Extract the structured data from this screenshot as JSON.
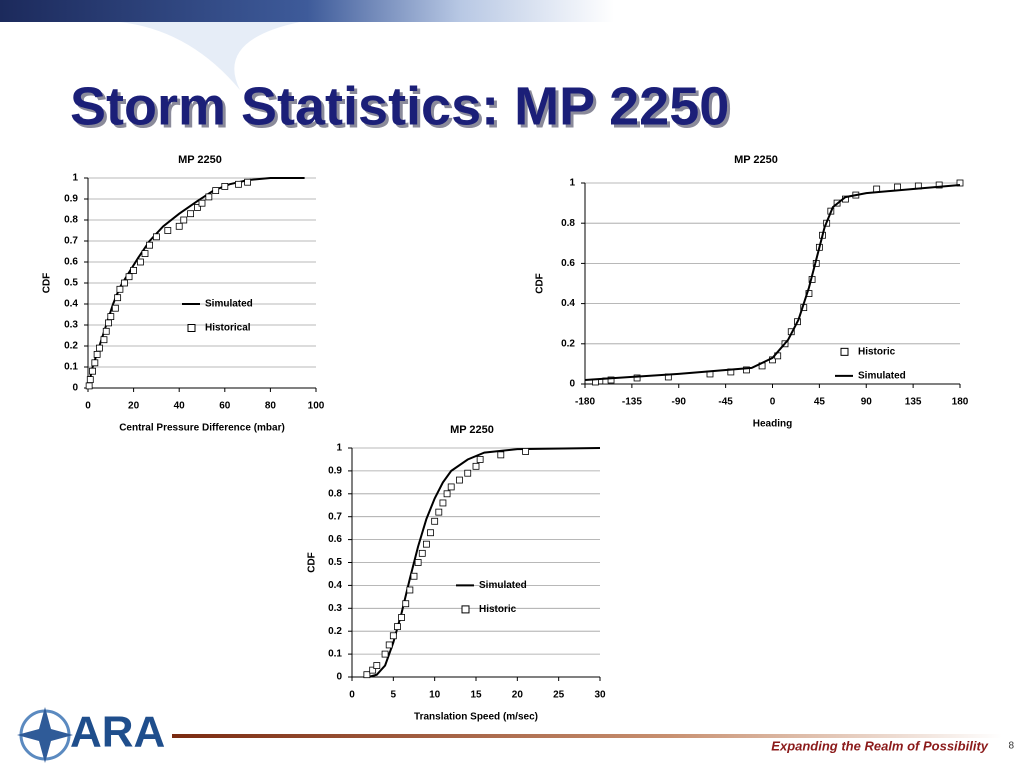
{
  "slide": {
    "title": "Storm Statistics: MP 2250",
    "logo_text": "ARA",
    "tagline": "Expanding the Realm of Possibility",
    "page_number": "8"
  },
  "chart_data": [
    {
      "type": "scatter",
      "title": "MP 2250",
      "x_label": "Central Pressure Difference (mbar)",
      "y_label": "CDF",
      "xlim": [
        0,
        100
      ],
      "xticks": [
        0,
        20,
        40,
        60,
        80,
        100
      ],
      "ylim": [
        0,
        1
      ],
      "yticks": [
        0,
        0.1,
        0.2,
        0.3,
        0.4,
        0.5,
        0.6,
        0.7,
        0.8,
        0.9,
        1
      ],
      "grid": true,
      "legend": "center right",
      "series": [
        {
          "name": "Simulated",
          "style": "line",
          "color": "#000000",
          "x": [
            0,
            2,
            5,
            8,
            11,
            14,
            18,
            22,
            27,
            33,
            40,
            48,
            55,
            62,
            70,
            80,
            95
          ],
          "values": [
            0,
            0.1,
            0.2,
            0.3,
            0.4,
            0.48,
            0.55,
            0.62,
            0.7,
            0.77,
            0.83,
            0.89,
            0.94,
            0.97,
            0.99,
            1,
            1
          ]
        },
        {
          "name": "Historical",
          "style": "markers",
          "color": "#000000",
          "x": [
            0.5,
            1,
            2,
            3,
            4,
            5,
            7,
            8,
            9,
            10,
            12,
            13,
            14,
            16,
            18,
            20,
            23,
            25,
            27,
            30,
            35,
            40,
            42,
            45,
            48,
            50,
            53,
            56,
            60,
            66,
            70
          ],
          "values": [
            0.01,
            0.04,
            0.08,
            0.12,
            0.16,
            0.19,
            0.23,
            0.27,
            0.31,
            0.34,
            0.38,
            0.43,
            0.47,
            0.5,
            0.53,
            0.56,
            0.6,
            0.64,
            0.68,
            0.72,
            0.75,
            0.77,
            0.8,
            0.83,
            0.86,
            0.88,
            0.91,
            0.94,
            0.96,
            0.97,
            0.98
          ]
        }
      ]
    },
    {
      "type": "scatter",
      "title": "MP 2250",
      "x_label": "Heading",
      "y_label": "CDF",
      "xlim": [
        -180,
        180
      ],
      "xticks": [
        -180,
        -135,
        -90,
        -45,
        0,
        45,
        90,
        135,
        180
      ],
      "ylim": [
        0,
        1
      ],
      "yticks": [
        0,
        0.2,
        0.4,
        0.6,
        0.8,
        1
      ],
      "grid": true,
      "legend": "lower right",
      "series": [
        {
          "name": "Historic",
          "style": "markers",
          "color": "#000000",
          "x": [
            -170,
            -160,
            -155,
            -130,
            -100,
            -60,
            -40,
            -25,
            -10,
            0,
            5,
            12,
            18,
            24,
            30,
            35,
            38,
            42,
            45,
            48,
            52,
            56,
            62,
            70,
            80,
            100,
            120,
            140,
            160,
            180
          ],
          "values": [
            0.01,
            0.015,
            0.02,
            0.03,
            0.035,
            0.05,
            0.06,
            0.07,
            0.09,
            0.12,
            0.14,
            0.2,
            0.26,
            0.31,
            0.38,
            0.45,
            0.52,
            0.6,
            0.68,
            0.74,
            0.8,
            0.86,
            0.9,
            0.92,
            0.94,
            0.97,
            0.98,
            0.985,
            0.99,
            1
          ]
        },
        {
          "name": "Simulated",
          "style": "line",
          "color": "#000000",
          "x": [
            -180,
            -90,
            -20,
            0,
            15,
            25,
            35,
            42,
            50,
            58,
            70,
            90,
            135,
            180
          ],
          "values": [
            0.02,
            0.05,
            0.08,
            0.13,
            0.22,
            0.32,
            0.48,
            0.62,
            0.78,
            0.88,
            0.93,
            0.95,
            0.97,
            0.99
          ]
        }
      ]
    },
    {
      "type": "scatter",
      "title": "MP 2250",
      "x_label": "Translation Speed (m/sec)",
      "y_label": "CDF",
      "xlim": [
        0,
        30
      ],
      "xticks": [
        0,
        5,
        10,
        15,
        20,
        25,
        30
      ],
      "ylim": [
        0,
        1
      ],
      "yticks": [
        0,
        0.1,
        0.2,
        0.3,
        0.4,
        0.5,
        0.6,
        0.7,
        0.8,
        0.9,
        1
      ],
      "grid": true,
      "legend": "center right",
      "series": [
        {
          "name": "Simulated",
          "style": "line",
          "color": "#000000",
          "x": [
            2,
            3,
            4,
            5,
            6,
            7,
            8,
            9,
            10,
            11,
            12,
            14,
            16,
            20,
            30
          ],
          "values": [
            0,
            0.01,
            0.05,
            0.15,
            0.28,
            0.43,
            0.57,
            0.69,
            0.78,
            0.85,
            0.9,
            0.95,
            0.98,
            0.995,
            1
          ]
        },
        {
          "name": "Historic",
          "style": "markers",
          "color": "#000000",
          "x": [
            1.8,
            2.5,
            3,
            4,
            4.5,
            5,
            5.5,
            6,
            6.5,
            7,
            7.5,
            8,
            8.5,
            9,
            9.5,
            10,
            10.5,
            11,
            11.5,
            12,
            13,
            14,
            15,
            15.5,
            18,
            21
          ],
          "values": [
            0.01,
            0.03,
            0.05,
            0.1,
            0.14,
            0.18,
            0.22,
            0.26,
            0.32,
            0.38,
            0.44,
            0.5,
            0.54,
            0.58,
            0.63,
            0.68,
            0.72,
            0.76,
            0.8,
            0.83,
            0.86,
            0.89,
            0.92,
            0.95,
            0.97,
            0.985
          ]
        }
      ]
    }
  ]
}
